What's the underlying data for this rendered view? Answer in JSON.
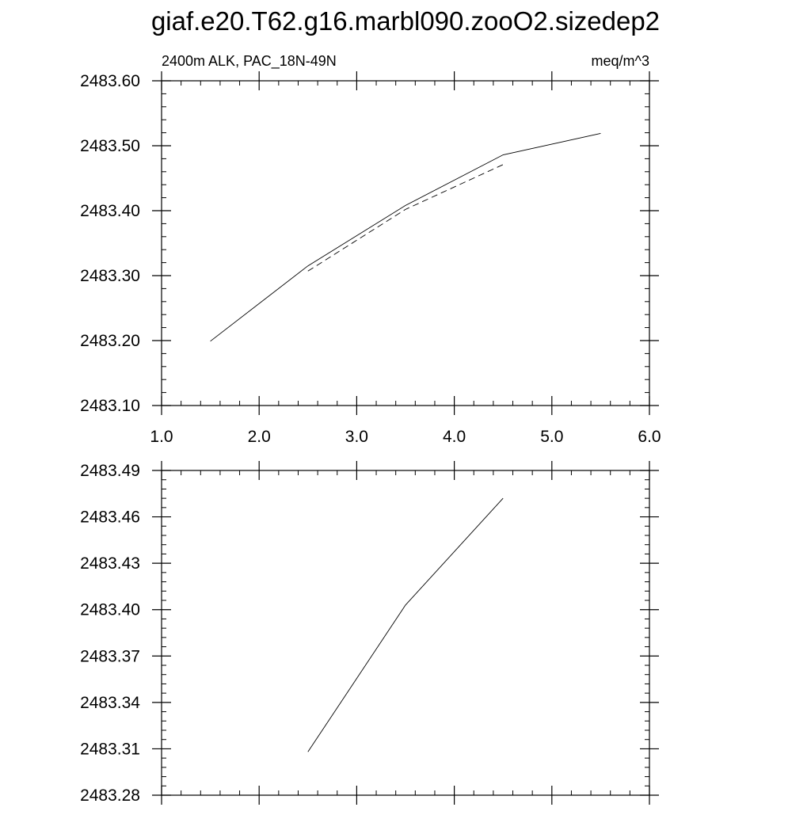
{
  "figure": {
    "title": "giaf.e20.T62.g16.marbl090.zooO2.sizedep2"
  },
  "chart_data": [
    {
      "type": "line",
      "subtitle_left": "2400m ALK, PAC_18N-49N",
      "subtitle_right": "meq/m^3",
      "xlim": [
        1.0,
        6.0
      ],
      "ylim": [
        2483.1,
        2483.6
      ],
      "x_ticks": [
        1.0,
        2.0,
        3.0,
        4.0,
        5.0,
        6.0
      ],
      "x_tick_labels": [
        "1.0",
        "2.0",
        "3.0",
        "4.0",
        "5.0",
        "6.0"
      ],
      "y_ticks": [
        2483.1,
        2483.2,
        2483.3,
        2483.4,
        2483.5,
        2483.6
      ],
      "y_tick_labels": [
        "2483.10",
        "2483.20",
        "2483.30",
        "2483.40",
        "2483.50",
        "2483.60"
      ],
      "grid": false,
      "series": [
        {
          "style": "solid",
          "color": "#000000",
          "x": [
            1.5,
            2.5,
            3.5,
            4.5,
            5.5
          ],
          "y": [
            2483.199,
            2483.315,
            2483.408,
            2483.486,
            2483.519
          ]
        },
        {
          "style": "dashed",
          "color": "#000000",
          "x": [
            2.5,
            3.5,
            4.5
          ],
          "y": [
            2483.307,
            2483.402,
            2483.471
          ]
        }
      ]
    },
    {
      "type": "line",
      "xlim": [
        1.0,
        6.0
      ],
      "ylim": [
        2483.28,
        2483.49
      ],
      "x_ticks": [
        1.0,
        2.0,
        3.0,
        4.0,
        5.0,
        6.0
      ],
      "x_tick_labels": [],
      "y_ticks": [
        2483.28,
        2483.31,
        2483.34,
        2483.37,
        2483.4,
        2483.43,
        2483.46,
        2483.49
      ],
      "y_tick_labels": [
        "2483.28",
        "2483.31",
        "2483.34",
        "2483.37",
        "2483.40",
        "2483.43",
        "2483.46",
        "2483.49"
      ],
      "grid": false,
      "series": [
        {
          "style": "solid",
          "color": "#000000",
          "x": [
            2.5,
            3.5,
            4.5
          ],
          "y": [
            2483.308,
            2483.403,
            2483.472
          ]
        }
      ]
    }
  ]
}
